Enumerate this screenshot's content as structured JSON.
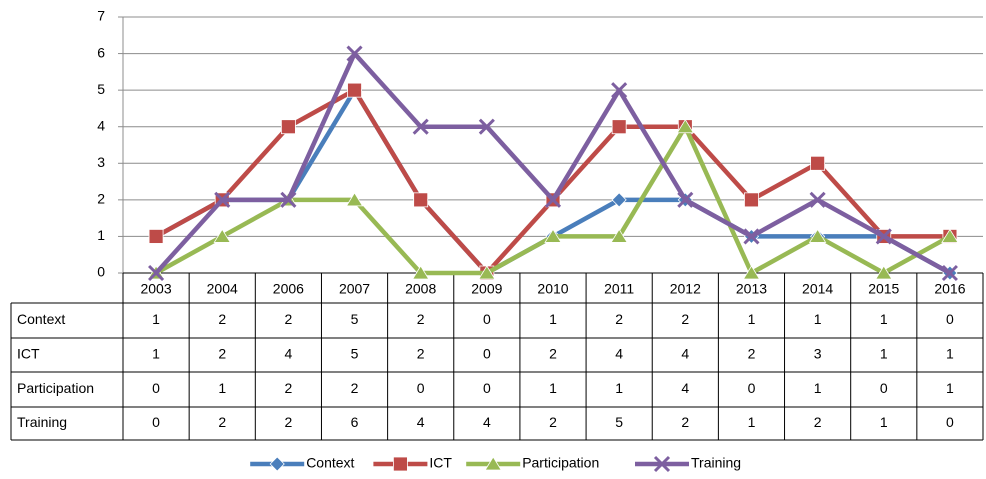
{
  "chart_data": {
    "type": "line",
    "categories": [
      "2003",
      "2004",
      "2006",
      "2007",
      "2008",
      "2009",
      "2010",
      "2011",
      "2012",
      "2013",
      "2014",
      "2015",
      "2016"
    ],
    "series": [
      {
        "name": "Context",
        "color": "#4a7ebb",
        "marker": "diamond",
        "values": [
          1,
          2,
          2,
          5,
          2,
          0,
          1,
          2,
          2,
          1,
          1,
          1,
          0
        ]
      },
      {
        "name": "ICT",
        "color": "#be4b48",
        "marker": "square",
        "values": [
          1,
          2,
          4,
          5,
          2,
          0,
          2,
          4,
          4,
          2,
          3,
          1,
          1
        ]
      },
      {
        "name": "Participation",
        "color": "#98b954",
        "marker": "triangle",
        "values": [
          0,
          1,
          2,
          2,
          0,
          0,
          1,
          1,
          4,
          0,
          1,
          0,
          1
        ]
      },
      {
        "name": "Training",
        "color": "#7d5fa0",
        "marker": "x",
        "values": [
          0,
          2,
          2,
          6,
          4,
          4,
          2,
          5,
          2,
          1,
          2,
          1,
          0
        ]
      }
    ],
    "ylim": [
      0,
      7
    ],
    "yticks": [
      0,
      1,
      2,
      3,
      4,
      5,
      6,
      7
    ],
    "grid": true,
    "legend": "bottom"
  }
}
